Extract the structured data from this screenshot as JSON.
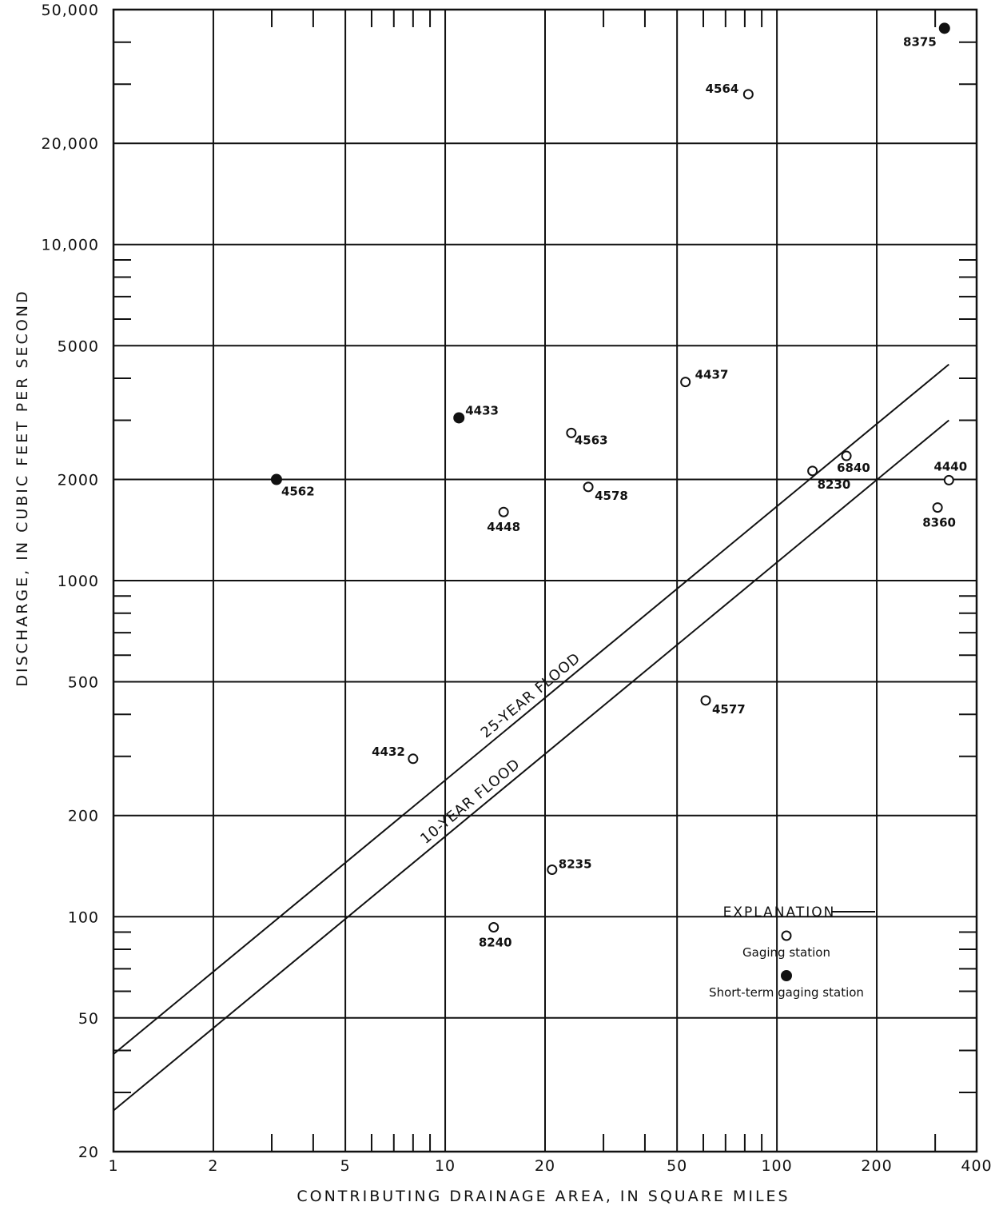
{
  "chart_data": {
    "type": "scatter",
    "x_scale": "log",
    "y_scale": "log",
    "xlabel": "CONTRIBUTING DRAINAGE AREA, IN SQUARE MILES",
    "ylabel": "DISCHARGE, IN CUBIC FEET PER SECOND",
    "xlim": [
      1,
      400
    ],
    "ylim": [
      20,
      50000
    ],
    "grid": true,
    "x_tick_labels": [
      {
        "value": 1,
        "label": "1"
      },
      {
        "value": 2,
        "label": "2"
      },
      {
        "value": 5,
        "label": "5"
      },
      {
        "value": 10,
        "label": "10"
      },
      {
        "value": 20,
        "label": "20"
      },
      {
        "value": 50,
        "label": "50"
      },
      {
        "value": 100,
        "label": "100"
      },
      {
        "value": 200,
        "label": "200"
      },
      {
        "value": 400,
        "label": "400"
      }
    ],
    "y_tick_labels": [
      {
        "value": 20,
        "label": "20"
      },
      {
        "value": 50,
        "label": "50"
      },
      {
        "value": 100,
        "label": "100"
      },
      {
        "value": 200,
        "label": "200"
      },
      {
        "value": 500,
        "label": "500"
      },
      {
        "value": 1000,
        "label": "1000"
      },
      {
        "value": 2000,
        "label": "2000"
      },
      {
        "value": 5000,
        "label": "5000"
      },
      {
        "value": 10000,
        "label": "10,000"
      },
      {
        "value": 20000,
        "label": "20,000"
      },
      {
        "value": 50000,
        "label": "50,000"
      }
    ],
    "x_gridlines": [
      1,
      2,
      5,
      10,
      20,
      50,
      100,
      200,
      400
    ],
    "y_gridlines": [
      50,
      100,
      200,
      500,
      1000,
      2000,
      5000,
      10000,
      20000
    ],
    "x_minor_ticks": [
      3,
      4,
      6,
      7,
      8,
      9,
      30,
      40,
      60,
      70,
      80,
      90,
      300
    ],
    "y_minor_ticks": [
      30,
      40,
      60,
      70,
      80,
      90,
      300,
      400,
      600,
      700,
      800,
      900,
      3000,
      4000,
      6000,
      7000,
      8000,
      9000,
      30000,
      40000
    ],
    "lines": [
      {
        "name": "25-YEAR FLOOD",
        "points": [
          [
            1,
            39
          ],
          [
            330,
            4400
          ]
        ]
      },
      {
        "name": "10-YEAR FLOOD",
        "points": [
          [
            1,
            26.5
          ],
          [
            330,
            3000
          ]
        ]
      }
    ],
    "series": [
      {
        "name": "Gaging station",
        "marker": "open-circle",
        "points": [
          {
            "label": "4564",
            "x": 82,
            "y": 28000
          },
          {
            "label": "4437",
            "x": 53,
            "y": 3900
          },
          {
            "label": "4563",
            "x": 24,
            "y": 2750
          },
          {
            "label": "4578",
            "x": 27,
            "y": 1900
          },
          {
            "label": "4448",
            "x": 15,
            "y": 1600
          },
          {
            "label": "6840",
            "x": 162,
            "y": 2350
          },
          {
            "label": "8230",
            "x": 128,
            "y": 2120
          },
          {
            "label": "4440",
            "x": 330,
            "y": 1990
          },
          {
            "label": "8360",
            "x": 305,
            "y": 1650
          },
          {
            "label": "4577",
            "x": 61,
            "y": 440
          },
          {
            "label": "4432",
            "x": 8,
            "y": 295
          },
          {
            "label": "8235",
            "x": 21,
            "y": 138
          },
          {
            "label": "8240",
            "x": 14,
            "y": 93
          }
        ]
      },
      {
        "name": "Short-term gaging station",
        "marker": "filled-circle",
        "points": [
          {
            "label": "8375",
            "x": 320,
            "y": 44000
          },
          {
            "label": "4433",
            "x": 11,
            "y": 3050
          },
          {
            "label": "4562",
            "x": 3.1,
            "y": 2000
          }
        ]
      }
    ],
    "legend": {
      "title": "EXPLANATION",
      "placement": "bottom-right",
      "items": [
        {
          "label": "Gaging station",
          "marker": "open-circle"
        },
        {
          "label": "Short-term gaging station",
          "marker": "filled-circle"
        }
      ]
    }
  }
}
